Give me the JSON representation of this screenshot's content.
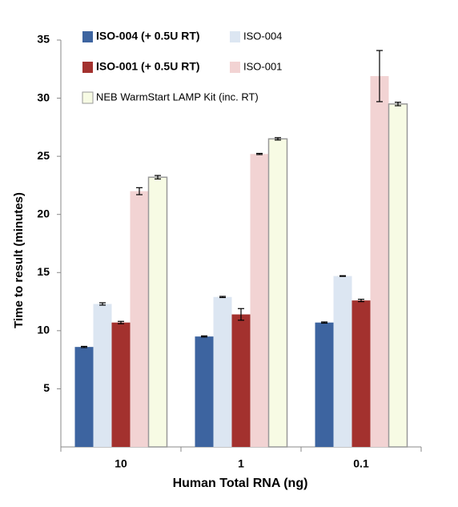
{
  "chart_data": {
    "type": "bar",
    "y_label": "Time to result (minutes)",
    "x_label": "Human Total RNA (ng)",
    "categories": [
      "10",
      "1",
      "0.1"
    ],
    "ylim": [
      0,
      35
    ],
    "yticks": [
      5,
      10,
      15,
      20,
      25,
      30,
      35
    ],
    "series": [
      {
        "name": "ISO-004 (+ 0.5U RT)",
        "color": "#3d64a0",
        "values": [
          8.6,
          9.5,
          10.7
        ],
        "errors": [
          0.05,
          0.05,
          0.05
        ]
      },
      {
        "name": "ISO-004",
        "color": "#dce6f2",
        "values": [
          12.3,
          12.9,
          14.7
        ],
        "errors": [
          0.1,
          0.05,
          0.03
        ]
      },
      {
        "name": "ISO-001 (+ 0.5U RT)",
        "color": "#a3312e",
        "values": [
          10.7,
          11.4,
          12.6
        ],
        "errors": [
          0.1,
          0.5,
          0.1
        ]
      },
      {
        "name": "ISO-001",
        "color": "#f2d3d3",
        "values": [
          22.0,
          25.2,
          31.9
        ],
        "errors": [
          0.3,
          0.05,
          2.2
        ]
      },
      {
        "name": "NEB WarmStart LAMP Kit (inc. RT)",
        "color": "#f7fbe4",
        "values": [
          23.2,
          26.5,
          29.5
        ],
        "errors": [
          0.15,
          0.1,
          0.15
        ]
      }
    ]
  }
}
